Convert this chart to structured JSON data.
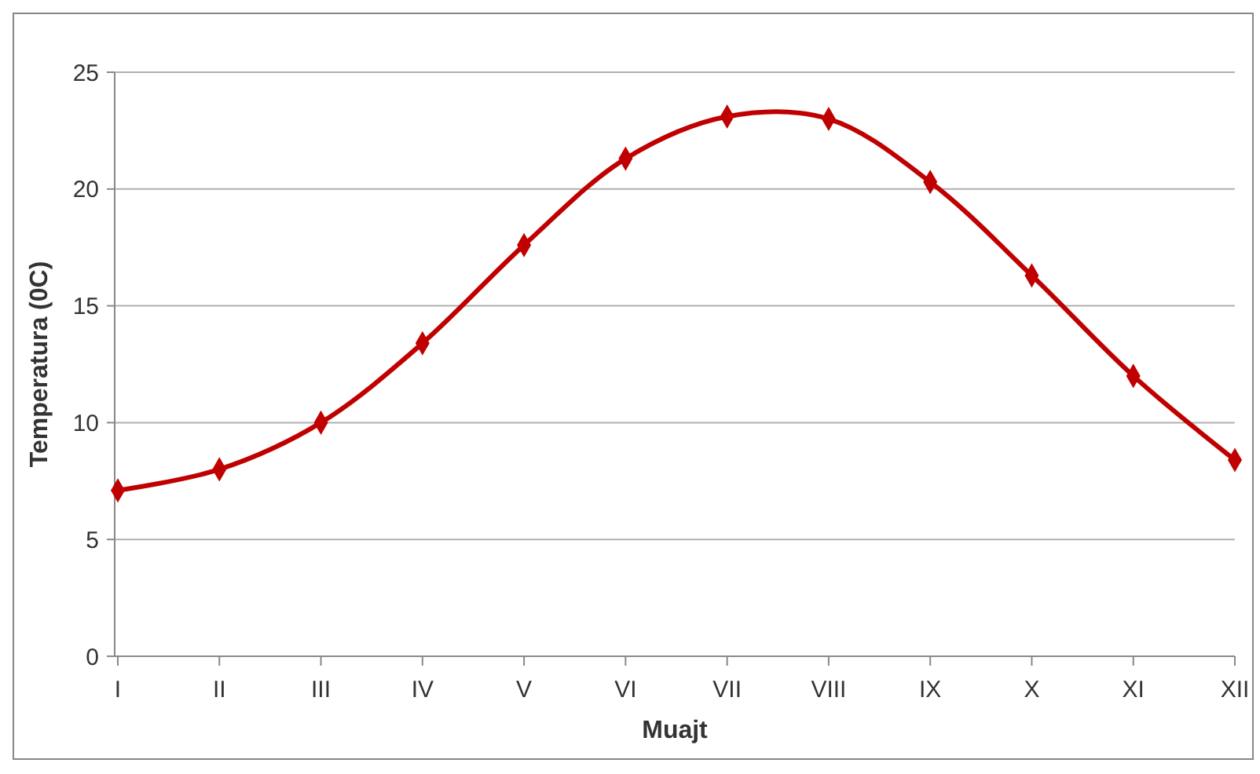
{
  "chart_data": {
    "type": "line",
    "xlabel": "Muajt",
    "ylabel": "Temperatura (0C)",
    "categories": [
      "I",
      "II",
      "III",
      "IV",
      "V",
      "VI",
      "VII",
      "VIII",
      "IX",
      "X",
      "XI",
      "XII"
    ],
    "series": [
      {
        "color": "#c00000",
        "values": [
          7.1,
          8.0,
          10.0,
          13.4,
          17.6,
          21.3,
          23.1,
          23.0,
          20.3,
          16.3,
          12.0,
          8.4
        ]
      }
    ],
    "ylim": [
      0,
      25
    ],
    "yticks": [
      0,
      5,
      10,
      15,
      20,
      25
    ],
    "grid": "y",
    "marker": "diamond",
    "line_style": "solid"
  }
}
